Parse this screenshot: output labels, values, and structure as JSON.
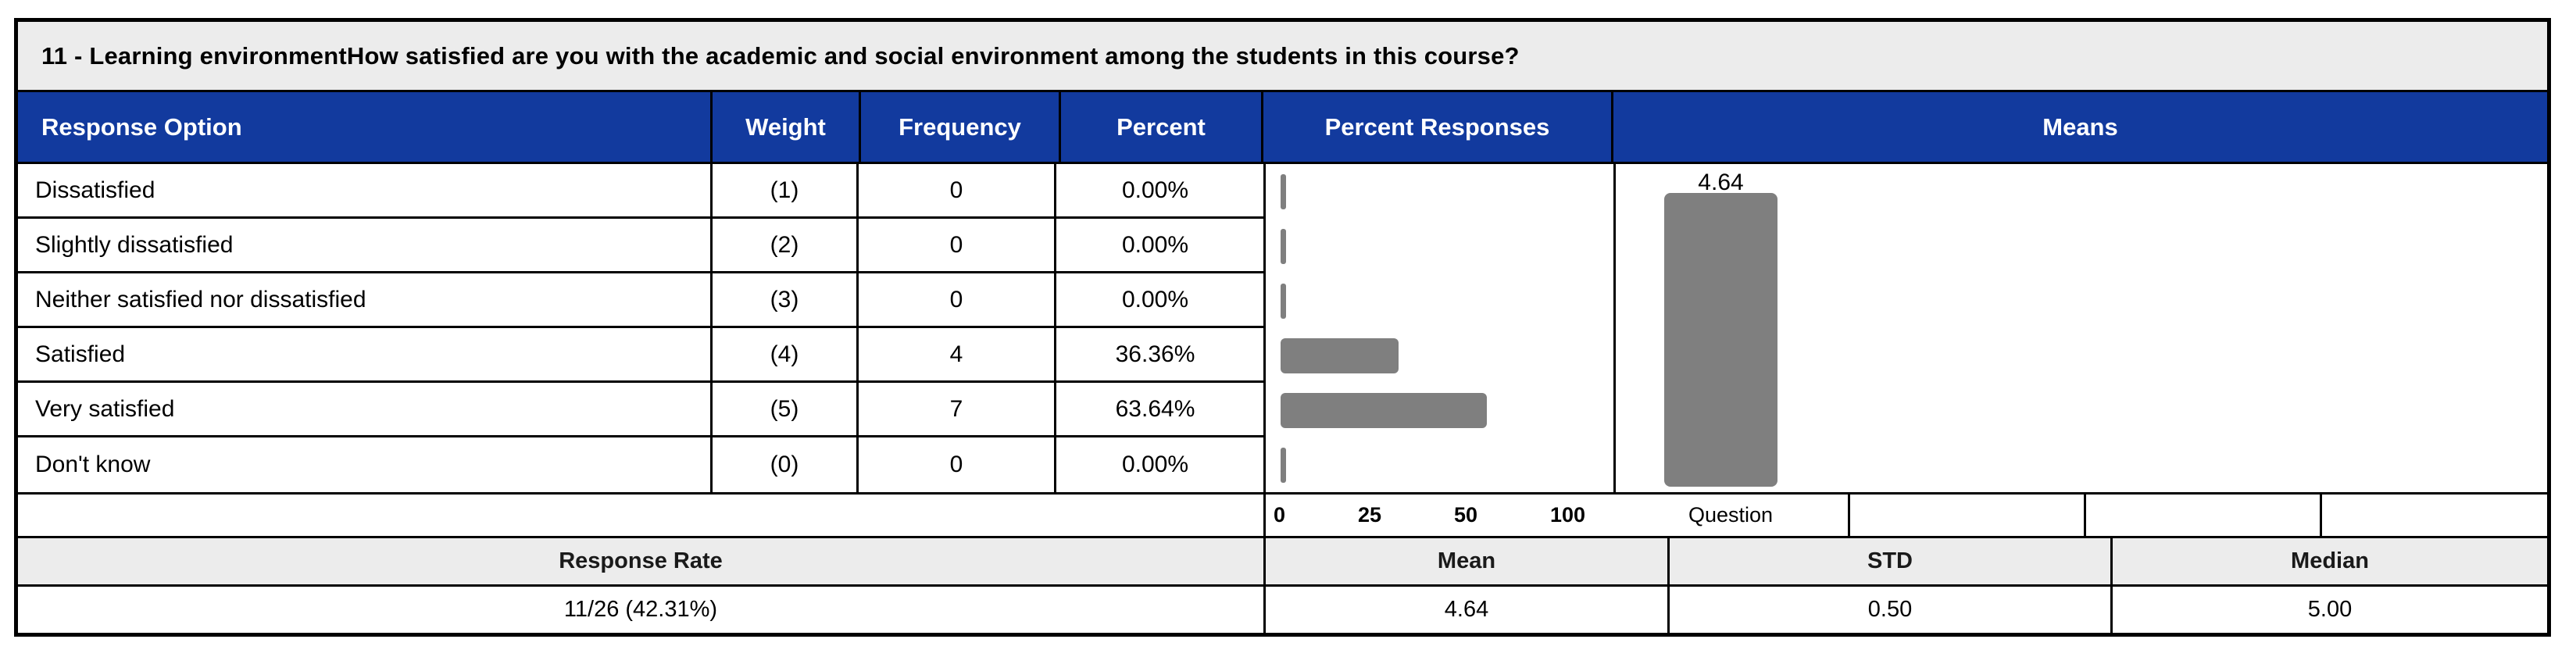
{
  "title": "11 - Learning environmentHow satisfied are you with the academic and social environment among the students in this course?",
  "headers": [
    "Response Option",
    "Weight",
    "Frequency",
    "Percent",
    "Percent Responses",
    "Means"
  ],
  "rows": [
    {
      "option": "Dissatisfied",
      "weight": "(1)",
      "frequency": "0",
      "percent": "0.00%",
      "percent_value": 0
    },
    {
      "option": "Slightly dissatisfied",
      "weight": "(2)",
      "frequency": "0",
      "percent": "0.00%",
      "percent_value": 0
    },
    {
      "option": "Neither satisfied nor dissatisfied",
      "weight": "(3)",
      "frequency": "0",
      "percent": "0.00%",
      "percent_value": 0
    },
    {
      "option": "Satisfied",
      "weight": "(4)",
      "frequency": "4",
      "percent": "36.36%",
      "percent_value": 36.36
    },
    {
      "option": "Very satisfied",
      "weight": "(5)",
      "frequency": "7",
      "percent": "63.64%",
      "percent_value": 63.64
    },
    {
      "option": "Don't know",
      "weight": "(0)",
      "frequency": "0",
      "percent": "0.00%",
      "percent_value": 0
    }
  ],
  "percent_axis": {
    "ticks": [
      "0",
      "25",
      "50",
      "100"
    ]
  },
  "means": {
    "value": 4.64,
    "value_label": "4.64",
    "scale_max": 5,
    "category": "Question"
  },
  "summary": {
    "headers": [
      "Response Rate",
      "Mean",
      "STD",
      "Median"
    ],
    "values": [
      "11/26 (42.31%)",
      "4.64",
      "0.50",
      "5.00"
    ]
  },
  "colors": {
    "header_bg": "#123a9e",
    "header_text": "#ffffff",
    "title_bg": "#ececec",
    "summary_header_bg": "#ececec",
    "bar": "#7f7f7f",
    "border": "#000000"
  },
  "chart_data": [
    {
      "type": "bar",
      "orientation": "horizontal",
      "title": "Percent Responses",
      "categories": [
        "Dissatisfied",
        "Slightly dissatisfied",
        "Neither satisfied nor dissatisfied",
        "Satisfied",
        "Very satisfied",
        "Don't know"
      ],
      "values": [
        0,
        0,
        0,
        36.36,
        63.64,
        0
      ],
      "xlabel": "",
      "ylabel": "",
      "xlim": [
        0,
        100
      ],
      "x_ticks": [
        0,
        25,
        50,
        100
      ],
      "grid": false,
      "bar_color": "#7f7f7f"
    },
    {
      "type": "bar",
      "orientation": "vertical",
      "title": "Means",
      "categories": [
        "Question"
      ],
      "values": [
        4.64
      ],
      "data_labels": [
        "4.64"
      ],
      "xlabel": "",
      "ylabel": "",
      "ylim": [
        0,
        5
      ],
      "grid": false,
      "bar_color": "#7f7f7f"
    },
    {
      "type": "table",
      "columns": [
        "Response Option",
        "Weight",
        "Frequency",
        "Percent"
      ],
      "rows": [
        [
          "Dissatisfied",
          "(1)",
          "0",
          "0.00%"
        ],
        [
          "Slightly dissatisfied",
          "(2)",
          "0",
          "0.00%"
        ],
        [
          "Neither satisfied nor dissatisfied",
          "(3)",
          "0",
          "0.00%"
        ],
        [
          "Satisfied",
          "(4)",
          "4",
          "36.36%"
        ],
        [
          "Very satisfied",
          "(5)",
          "7",
          "63.64%"
        ],
        [
          "Don't know",
          "(0)",
          "0",
          "0.00%"
        ]
      ],
      "summary": {
        "Response Rate": "11/26 (42.31%)",
        "Mean": "4.64",
        "STD": "0.50",
        "Median": "5.00"
      }
    }
  ]
}
